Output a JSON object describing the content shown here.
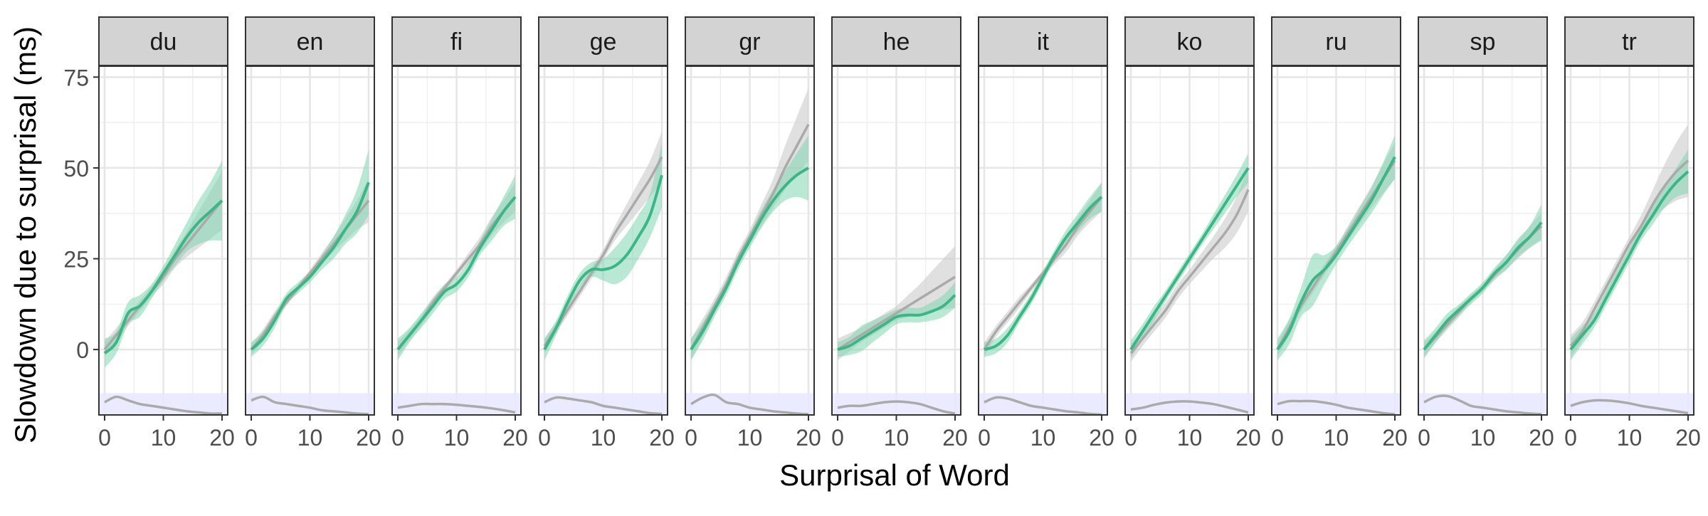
{
  "chart_data": {
    "type": "line",
    "layout": "faceted small multiples",
    "title": "",
    "xlabel": "Surprisal of Word",
    "ylabel": "Slowdown due to surprisal (ms)",
    "xlim": [
      0,
      20
    ],
    "ylim": [
      -18,
      78
    ],
    "x_ticks": [
      0,
      10,
      20
    ],
    "x_tick_labels": [
      "0",
      "10",
      "20"
    ],
    "y_ticks": [
      0,
      25,
      50,
      75
    ],
    "y_tick_labels": [
      "0",
      "25",
      "50",
      "75"
    ],
    "grid": true,
    "colors": {
      "smooth_line": "#3bb787",
      "smooth_band": "#7fd6b0",
      "linear_line": "#aaaaaa",
      "linear_band": "#cccccc",
      "density_line": "#aaaaaa",
      "density_band": "#e8e8ff",
      "strip_fill": "#d3d3d3",
      "panel_border": "#333333",
      "grid": "#e6e6e6"
    },
    "density_band_range": [
      -18,
      -12
    ],
    "x": [
      0,
      2,
      4,
      6,
      8,
      10,
      12,
      14,
      16,
      18,
      20
    ],
    "facets": [
      {
        "name": "du",
        "smooth": [
          -1,
          2,
          10,
          12,
          16,
          21,
          26,
          31,
          35,
          38,
          41
        ],
        "smooth_half_width": [
          4,
          3,
          3,
          3,
          2,
          2,
          3,
          4,
          6,
          8,
          11
        ],
        "linear": [
          0,
          4,
          8,
          12,
          16,
          20,
          25,
          29,
          33,
          37,
          41
        ],
        "linear_half_width": [
          2,
          2,
          1.5,
          1.5,
          1.5,
          2,
          2.5,
          3.5,
          5,
          6.5,
          8
        ],
        "density": [
          -14.5,
          -13,
          -14,
          -15,
          -15.5,
          -16,
          -16.5,
          -17,
          -17.3,
          -17.6,
          -17.6
        ]
      },
      {
        "name": "en",
        "smooth": [
          0,
          3,
          8,
          14,
          17,
          20,
          24,
          28,
          33,
          38,
          46
        ],
        "smooth_half_width": [
          2,
          2,
          2,
          1.5,
          1.5,
          1.5,
          2,
          3,
          4,
          6,
          9
        ],
        "linear": [
          0,
          4,
          9,
          13,
          17,
          21,
          25,
          29,
          33,
          37,
          41
        ],
        "linear_half_width": [
          1.5,
          1.5,
          1.5,
          1,
          1,
          1,
          1.5,
          2,
          3,
          4,
          6
        ],
        "density": [
          -14,
          -13,
          -14.5,
          -15,
          -15.5,
          -16,
          -16.7,
          -17,
          -17.3,
          -17.6,
          -17.8
        ]
      },
      {
        "name": "fi",
        "smooth": [
          0,
          4,
          8,
          12,
          16,
          18,
          22,
          28,
          33,
          38,
          42
        ],
        "smooth_half_width": [
          3,
          2,
          2,
          2,
          2,
          2,
          2,
          2,
          3,
          4,
          6
        ],
        "linear": [
          0,
          4,
          8,
          13,
          17,
          21,
          25,
          29,
          34,
          38,
          42
        ],
        "linear_half_width": [
          2,
          1.5,
          1.5,
          1.5,
          1,
          1,
          1.5,
          2,
          2.5,
          3,
          4
        ],
        "density": [
          -16,
          -15.5,
          -15,
          -15,
          -15,
          -15.2,
          -15.5,
          -15.8,
          -16.2,
          -16.7,
          -17.3
        ]
      },
      {
        "name": "ge",
        "smooth": [
          0,
          6,
          13,
          19,
          22,
          22,
          23,
          26,
          31,
          37,
          48
        ],
        "smooth_half_width": [
          3,
          2,
          2,
          2,
          2,
          3,
          5,
          6,
          6,
          6,
          9
        ],
        "linear": [
          1,
          6,
          11,
          16,
          21,
          26,
          32,
          37,
          42,
          47,
          53
        ],
        "linear_half_width": [
          2,
          1.5,
          1.5,
          1.5,
          1.5,
          1.5,
          2,
          3,
          4,
          5,
          7
        ],
        "density": [
          -14.5,
          -13.2,
          -13.5,
          -14,
          -14.5,
          -15.5,
          -16,
          -16.5,
          -17,
          -17.5,
          -17.7
        ]
      },
      {
        "name": "gr",
        "smooth": [
          0,
          5,
          11,
          17,
          24,
          30,
          36,
          41,
          45,
          48,
          50
        ],
        "smooth_half_width": [
          3,
          2.5,
          2,
          2,
          2,
          2,
          2.5,
          3,
          4,
          6,
          9
        ],
        "linear": [
          0,
          6,
          12,
          18,
          25,
          31,
          37,
          43,
          50,
          56,
          62
        ],
        "linear_half_width": [
          3,
          2.5,
          2,
          2,
          2,
          2,
          3,
          4,
          6,
          8,
          10
        ],
        "density": [
          -15,
          -13.2,
          -12.5,
          -14.5,
          -15,
          -16,
          -16.5,
          -17,
          -17.3,
          -17.6,
          -17.8
        ]
      },
      {
        "name": "he",
        "smooth": [
          0,
          1,
          3,
          5,
          7,
          9,
          9.5,
          9.5,
          10.5,
          12,
          15
        ],
        "smooth_half_width": [
          2,
          2.5,
          3.5,
          3,
          2.5,
          2,
          2,
          2,
          2.5,
          3,
          3.5
        ],
        "linear": [
          0,
          2,
          4,
          6,
          8,
          10,
          12,
          14,
          16,
          18,
          20
        ],
        "linear_half_width": [
          3,
          2.5,
          2,
          2,
          2,
          2,
          3,
          4,
          5.5,
          7,
          8.5
        ],
        "density": [
          -16,
          -15.5,
          -15.5,
          -15,
          -14.5,
          -14.3,
          -14.5,
          -15,
          -16,
          -17,
          -17.6
        ]
      },
      {
        "name": "it",
        "smooth": [
          0,
          1,
          4,
          9,
          14,
          20,
          26,
          31,
          35,
          39,
          42
        ],
        "smooth_half_width": [
          2,
          2,
          2,
          1.5,
          1.5,
          1.5,
          1.5,
          2,
          2.5,
          3,
          4
        ],
        "linear": [
          0,
          5,
          9,
          13,
          17,
          21,
          25,
          29,
          34,
          38,
          42
        ],
        "linear_half_width": [
          2,
          1.5,
          1.5,
          1.5,
          1,
          1,
          1.5,
          2,
          2.5,
          3,
          4
        ],
        "density": [
          -14.5,
          -13.2,
          -13.5,
          -14.5,
          -15.5,
          -16,
          -16.5,
          -17,
          -17.3,
          -17.7,
          -17.9
        ]
      },
      {
        "name": "ko",
        "smooth": [
          0,
          5,
          10,
          15,
          20,
          25,
          30,
          35,
          40,
          45,
          50
        ],
        "smooth_half_width": [
          2.5,
          2,
          2,
          1.5,
          1.5,
          1.5,
          1.5,
          2,
          2.5,
          3,
          4
        ],
        "linear": [
          -1,
          3,
          7,
          11,
          16,
          20,
          24,
          28,
          32,
          37,
          44
        ],
        "linear_half_width": [
          2.5,
          2,
          2,
          2,
          2,
          2,
          2.5,
          3,
          4,
          5,
          6
        ],
        "density": [
          -16.5,
          -16,
          -15.2,
          -14.6,
          -14.3,
          -14.3,
          -14.6,
          -15,
          -15.7,
          -16.5,
          -17.3
        ]
      },
      {
        "name": "ru",
        "smooth": [
          0,
          5,
          13,
          19,
          22,
          26,
          31,
          36,
          41,
          47,
          53
        ],
        "smooth_half_width": [
          3,
          3.5,
          4,
          7,
          4,
          2.5,
          2.5,
          3,
          3.5,
          4.5,
          6
        ],
        "linear": [
          0,
          6,
          12,
          17,
          22,
          27,
          32,
          37,
          42,
          47,
          52
        ],
        "linear_half_width": [
          2,
          2,
          1.5,
          1.5,
          1.5,
          1.5,
          2,
          2.5,
          3,
          4,
          5
        ],
        "density": [
          -15,
          -14.2,
          -14.2,
          -14.2,
          -14.6,
          -15.2,
          -16,
          -16.5,
          -17,
          -17.5,
          -17.8
        ]
      },
      {
        "name": "sp",
        "smooth": [
          0,
          4,
          8,
          11,
          14,
          17,
          21,
          24,
          28,
          31,
          35
        ],
        "smooth_half_width": [
          2.5,
          2,
          2,
          1.5,
          1.5,
          1.5,
          1.5,
          2,
          2.5,
          3,
          5
        ],
        "linear": [
          0,
          3.5,
          7,
          10.5,
          14,
          17,
          20.5,
          24,
          27.5,
          31,
          34
        ],
        "linear_half_width": [
          2,
          1.5,
          1.5,
          1.5,
          1,
          1,
          1.5,
          2,
          2.5,
          3,
          3.5
        ],
        "density": [
          -14.5,
          -13,
          -12.8,
          -14,
          -15.5,
          -16,
          -16.5,
          -17,
          -17.3,
          -17.6,
          -17.8
        ]
      },
      {
        "name": "tr",
        "smooth": [
          0,
          4,
          8,
          14,
          20,
          26,
          32,
          37,
          42,
          46,
          49
        ],
        "smooth_half_width": [
          3,
          2.5,
          2,
          2,
          2,
          2,
          2,
          2.5,
          3,
          4,
          6
        ],
        "linear": [
          1,
          5,
          11,
          17,
          23,
          29,
          34,
          40,
          45,
          49,
          52
        ],
        "linear_half_width": [
          3,
          2.5,
          2,
          2,
          2,
          2,
          3,
          4,
          6,
          8,
          10
        ],
        "density": [
          -15.5,
          -14.5,
          -14,
          -14,
          -14.3,
          -14.8,
          -15.5,
          -16,
          -16.5,
          -17,
          -17.5
        ]
      }
    ]
  }
}
